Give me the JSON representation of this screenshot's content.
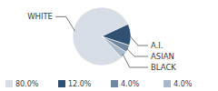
{
  "chart_data": {
    "type": "pie",
    "categories": [
      "WHITE",
      "A.I.",
      "ASIAN",
      "BLACK"
    ],
    "values": [
      80,
      12,
      4,
      4
    ],
    "value_labels": [
      "80.0%",
      "12.0%",
      "4.0%",
      "4.0%"
    ],
    "colors": [
      "#d6dde7",
      "#2f5070",
      "#7089a2",
      "#aab9c9"
    ],
    "legend": "bottom"
  }
}
